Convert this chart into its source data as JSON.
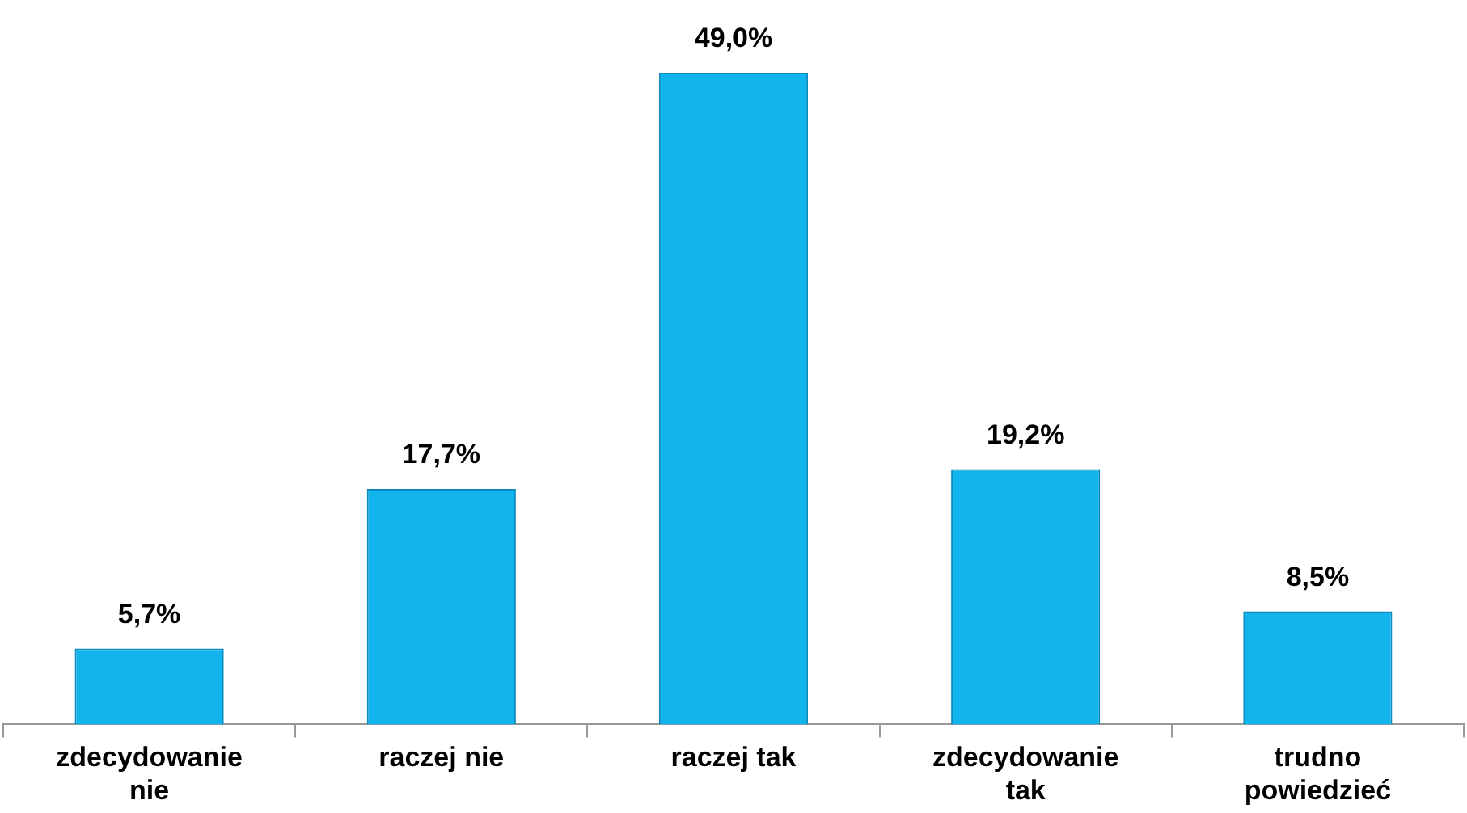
{
  "chart_data": {
    "type": "bar",
    "categories": [
      "zdecydowanie nie",
      "raczej nie",
      "raczej tak",
      "zdecydowanie tak",
      "trudno powiedzieć"
    ],
    "values": [
      5.7,
      17.7,
      49.0,
      19.2,
      8.5
    ],
    "value_labels": [
      "5,7%",
      "17,7%",
      "49,0%",
      "19,2%",
      "8,5%"
    ],
    "color": "#12b4ee",
    "grid": false,
    "legend": false
  }
}
